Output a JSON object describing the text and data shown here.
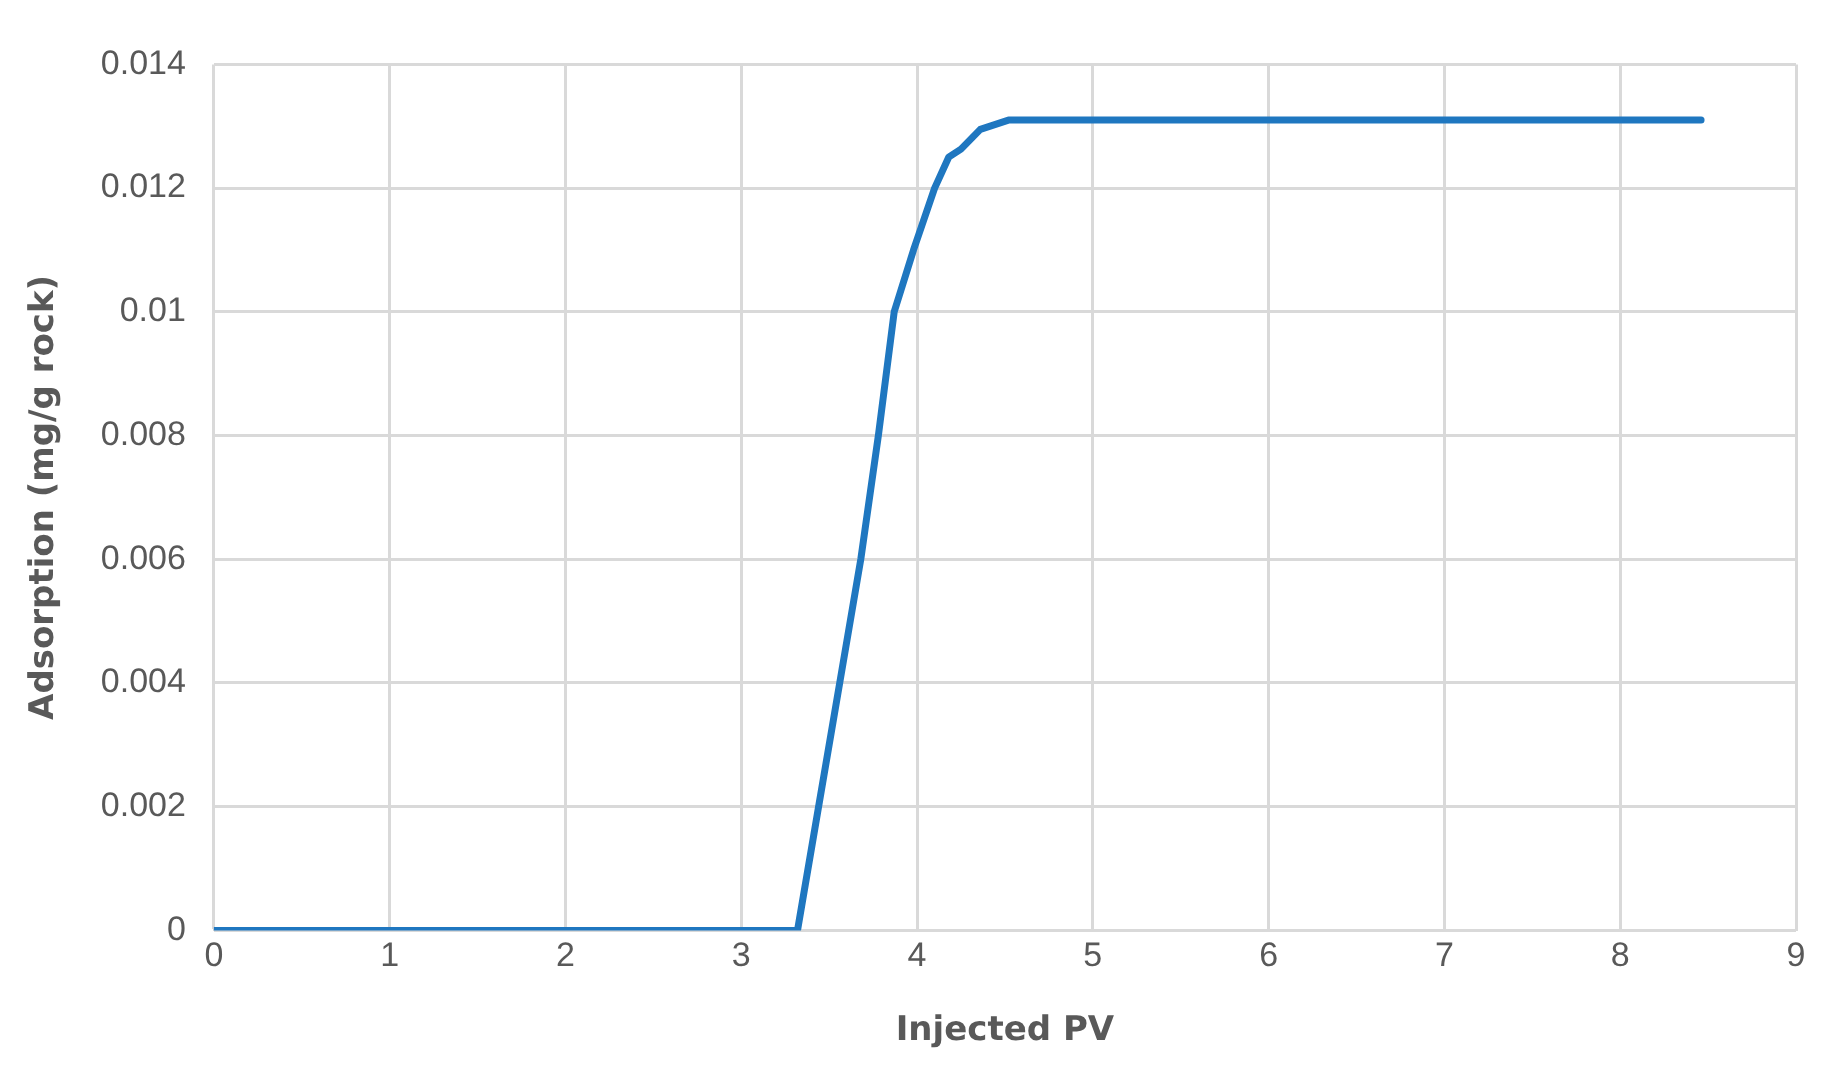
{
  "chart_data": {
    "type": "line",
    "xlabel": "Injected PV",
    "ylabel": "Adsorption (mg/g rock)",
    "x": [
      0,
      3.32,
      3.44,
      3.56,
      3.68,
      3.78,
      3.87,
      3.98,
      4.1,
      4.18,
      4.25,
      4.36,
      4.52,
      8.46
    ],
    "series": [
      {
        "color": "#1f77c0",
        "values": [
          0,
          0,
          0.002,
          0.004,
          0.006,
          0.008,
          0.01,
          0.011,
          0.012,
          0.0125,
          0.01263,
          0.01295,
          0.0131,
          0.0131
        ]
      }
    ],
    "xlim": [
      0,
      9
    ],
    "xticks": [
      0,
      1,
      2,
      3,
      4,
      5,
      6,
      7,
      8,
      9
    ],
    "ylim": [
      0,
      0.014
    ],
    "yticks": [
      0,
      0.002,
      0.004,
      0.006,
      0.008,
      0.01,
      0.012,
      0.014
    ],
    "grid": true,
    "marker": "none",
    "line_style": "solid"
  }
}
